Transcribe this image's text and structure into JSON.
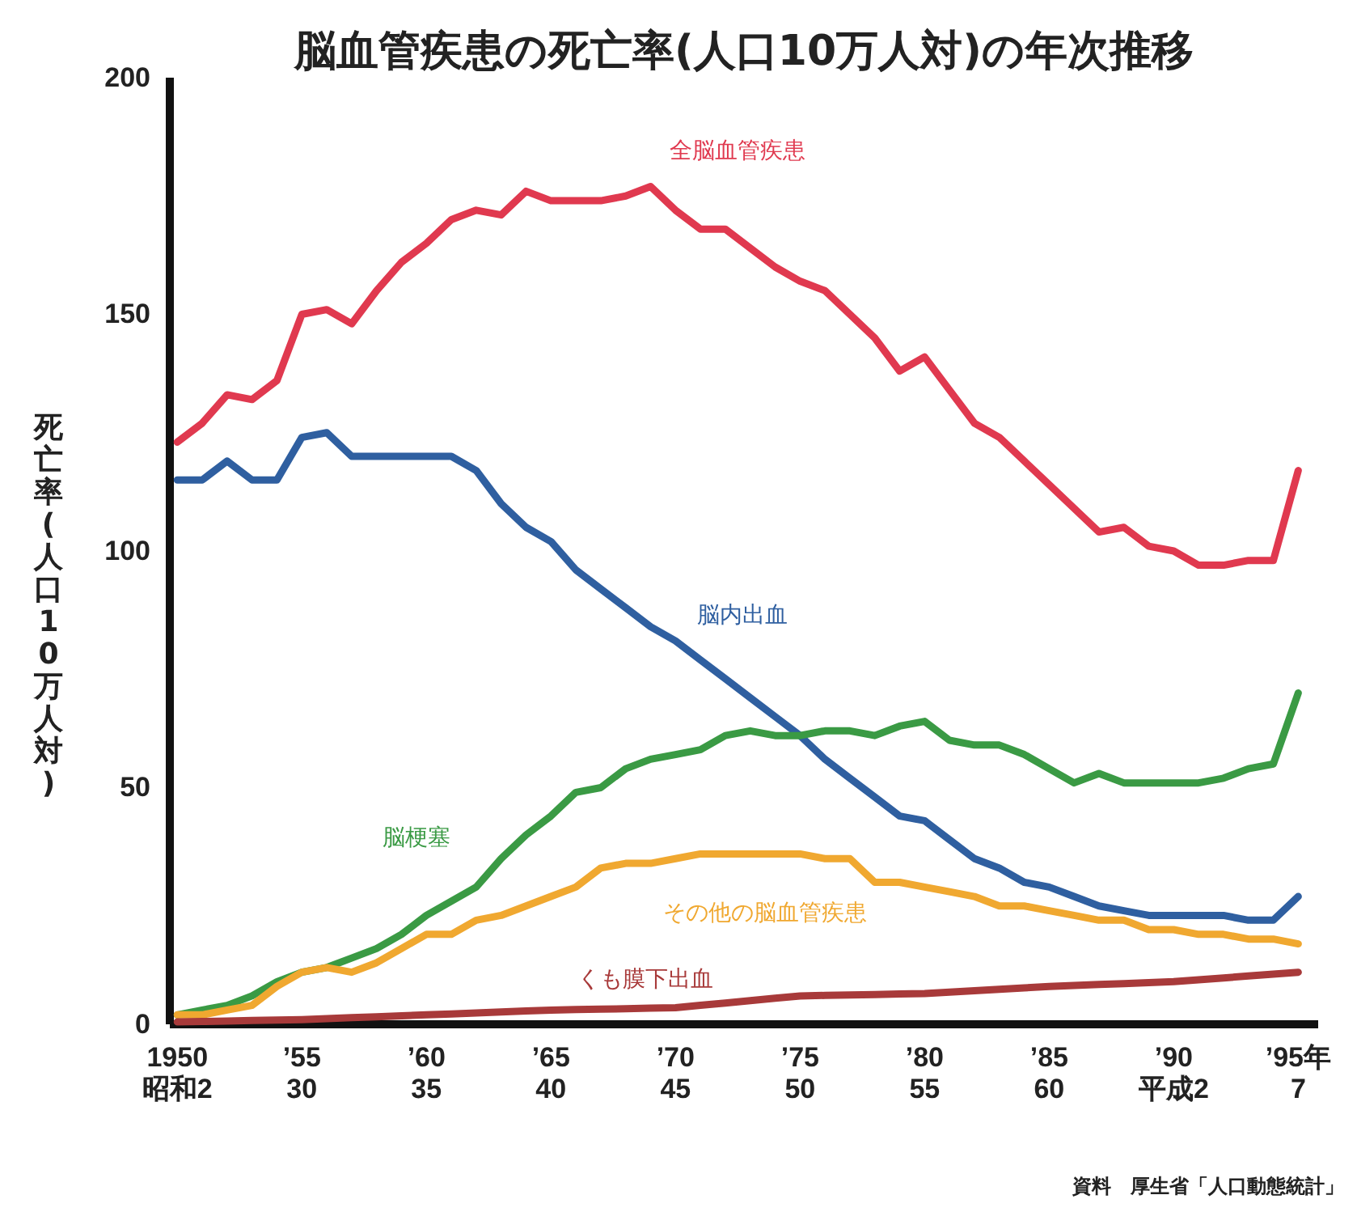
{
  "chart_data": {
    "type": "line",
    "title": "脳血管疾患の死亡率(人口10万人対)の年次推移",
    "ylabel": "死亡率(人口10万人対)",
    "categories": [
      "1950\n昭和2",
      null,
      null,
      null,
      null,
      "’55\n30",
      null,
      null,
      null,
      null,
      "’60\n35",
      null,
      null,
      null,
      null,
      "’65\n40",
      null,
      null,
      null,
      null,
      "’70\n45",
      null,
      null,
      null,
      null,
      "’75\n50",
      null,
      null,
      null,
      null,
      "’80\n55",
      null,
      null,
      null,
      null,
      "’85\n60",
      null,
      null,
      null,
      null,
      "’90\n平成2",
      null,
      null,
      null,
      null,
      "’95年\n7"
    ],
    "series": [
      {
        "name": "全脳血管疾患",
        "color": "#e0394f",
        "values": [
          123,
          127,
          133,
          132,
          136,
          150,
          151,
          148,
          155,
          161,
          165,
          170,
          172,
          171,
          176,
          174,
          174,
          174,
          175,
          177,
          172,
          168,
          168,
          164,
          160,
          157,
          155,
          150,
          145,
          138,
          141,
          134,
          127,
          124,
          119,
          114,
          109,
          104,
          105,
          101,
          100,
          97,
          97,
          98,
          98,
          117
        ]
      },
      {
        "name": "脳内出血",
        "color": "#2f5fa0",
        "values": [
          115,
          115,
          119,
          115,
          115,
          124,
          125,
          120,
          120,
          120,
          120,
          120,
          117,
          110,
          105,
          102,
          96,
          92,
          88,
          84,
          81,
          77,
          73,
          69,
          65,
          61,
          56,
          52,
          48,
          44,
          43,
          39,
          35,
          33,
          30,
          29,
          27,
          25,
          24,
          23,
          23,
          23,
          23,
          22,
          22,
          27
        ]
      },
      {
        "name": "脳梗塞",
        "color": "#3a9a44",
        "values": [
          2,
          3,
          4,
          6,
          9,
          11,
          12,
          14,
          16,
          19,
          23,
          26,
          29,
          35,
          40,
          44,
          49,
          50,
          54,
          56,
          57,
          58,
          61,
          62,
          61,
          61,
          62,
          62,
          61,
          63,
          64,
          60,
          59,
          59,
          57,
          54,
          51,
          53,
          51,
          51,
          51,
          51,
          52,
          54,
          55,
          70
        ]
      },
      {
        "name": "その他の脳血管疾患",
        "color": "#f0a830",
        "values": [
          2,
          2,
          3,
          4,
          8,
          11,
          12,
          11,
          13,
          16,
          19,
          19,
          22,
          23,
          25,
          27,
          29,
          33,
          34,
          34,
          35,
          36,
          36,
          36,
          36,
          36,
          35,
          35,
          30,
          30,
          29,
          28,
          27,
          25,
          25,
          24,
          23,
          22,
          22,
          20,
          20,
          19,
          19,
          18,
          18,
          17
        ]
      },
      {
        "name": "くも膜下出血",
        "color": "#a83a3a",
        "values": [
          0.5,
          0.6,
          0.7,
          0.8,
          0.9,
          1,
          1.2,
          1.4,
          1.6,
          1.8,
          2,
          2.2,
          2.4,
          2.6,
          2.8,
          3,
          3.1,
          3.2,
          3.3,
          3.4,
          3.5,
          4,
          4.5,
          5,
          5.5,
          6,
          6.1,
          6.2,
          6.3,
          6.4,
          6.5,
          6.8,
          7.1,
          7.4,
          7.7,
          8,
          8.2,
          8.4,
          8.6,
          8.8,
          9,
          9.4,
          9.8,
          10.2,
          10.6,
          11
        ]
      }
    ],
    "ylim": [
      0,
      200
    ],
    "yticks": [
      0,
      50,
      100,
      150,
      200
    ],
    "grid": false,
    "legend": false,
    "marker": "none",
    "line_style": "solid",
    "annotations": [
      "資料　厚生省「人口動態統計」"
    ]
  }
}
